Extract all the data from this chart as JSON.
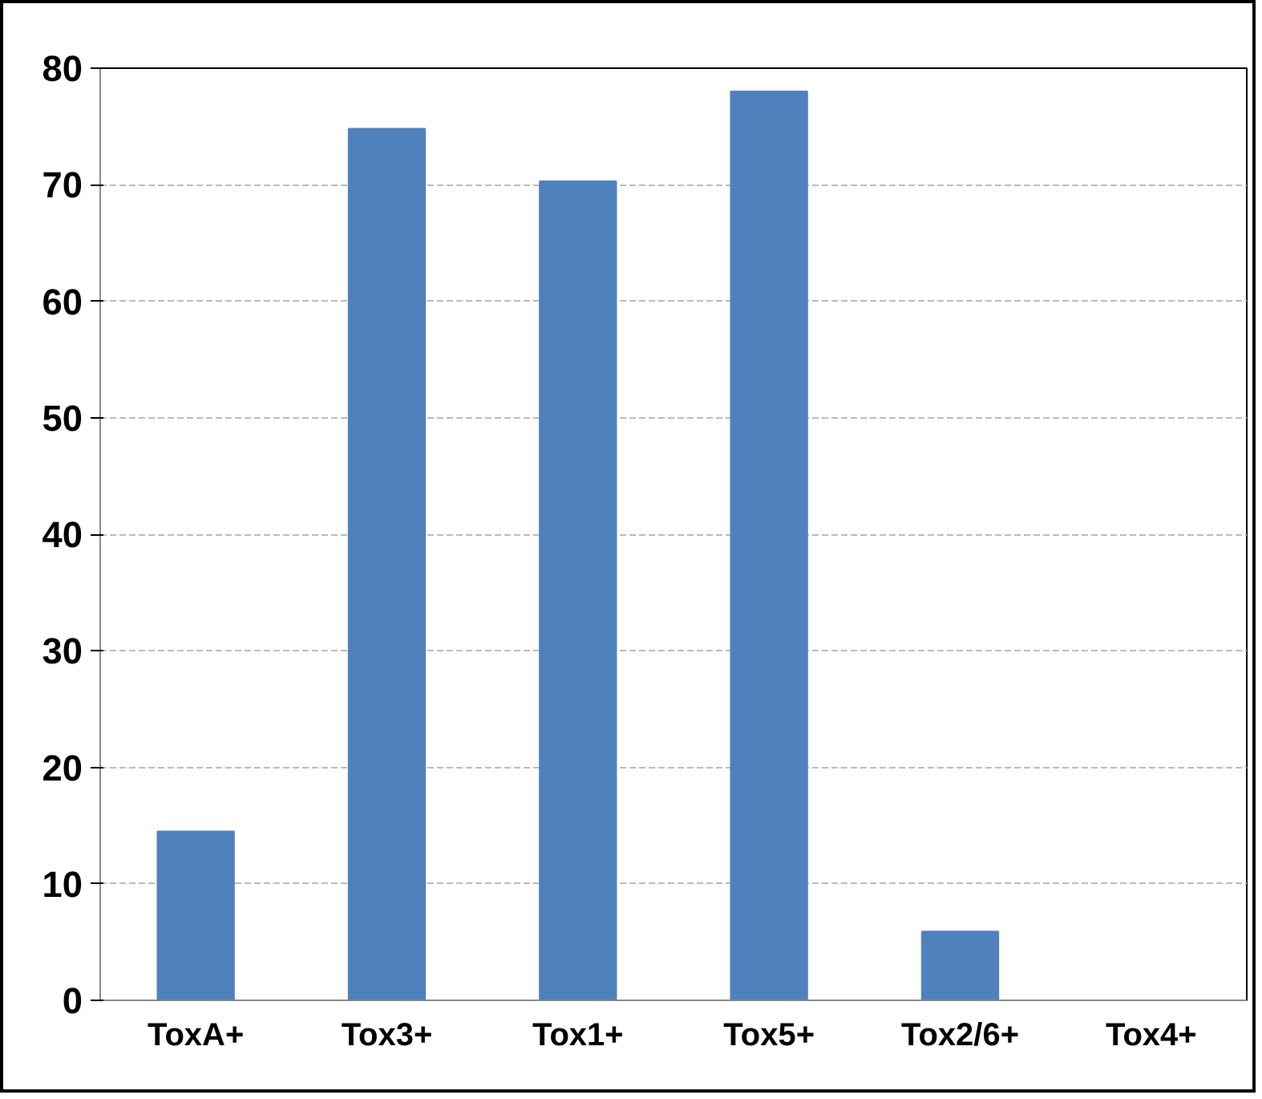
{
  "chart_data": {
    "type": "bar",
    "categories": [
      "ToxA+",
      "Tox3+",
      "Tox1+",
      "Tox5+",
      "Tox2/6+",
      "Tox4+"
    ],
    "values": [
      14.5,
      74.8,
      70.3,
      78.0,
      5.9,
      0
    ],
    "color": "#4f81bd",
    "ylim": [
      0,
      80
    ],
    "yticks": [
      0,
      10,
      20,
      30,
      40,
      50,
      60,
      70,
      80
    ],
    "grid": "y"
  }
}
